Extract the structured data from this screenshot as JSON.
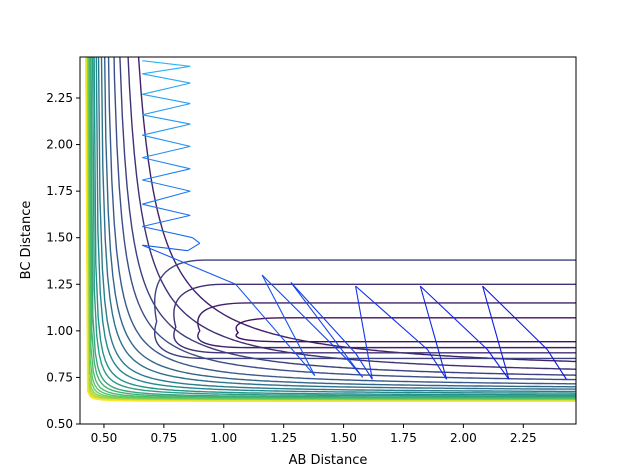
{
  "chart_data": {
    "type": "contour",
    "title": "",
    "xlabel": "AB Distance",
    "ylabel": "BC Distance",
    "xlim": [
      0.4,
      2.47
    ],
    "ylim": [
      0.5,
      2.47
    ],
    "xticks": [
      {
        "v": 0.5,
        "label": "0.50"
      },
      {
        "v": 0.75,
        "label": "0.75"
      },
      {
        "v": 1.0,
        "label": "1.00"
      },
      {
        "v": 1.25,
        "label": "1.25"
      },
      {
        "v": 1.5,
        "label": "1.50"
      },
      {
        "v": 1.75,
        "label": "1.75"
      },
      {
        "v": 2.0,
        "label": "2.00"
      },
      {
        "v": 2.25,
        "label": "2.25"
      }
    ],
    "yticks": [
      {
        "v": 0.5,
        "label": "0.50"
      },
      {
        "v": 0.75,
        "label": "0.75"
      },
      {
        "v": 1.0,
        "label": "1.00"
      },
      {
        "v": 1.25,
        "label": "1.25"
      },
      {
        "v": 1.5,
        "label": "1.50"
      },
      {
        "v": 1.75,
        "label": "1.75"
      },
      {
        "v": 2.0,
        "label": "2.00"
      },
      {
        "v": 2.25,
        "label": "2.25"
      }
    ],
    "grid": false,
    "colormap": "viridis",
    "contour_curves": [
      {
        "frac": 0.0,
        "r": 0.4,
        "tail": 1.0
      },
      {
        "frac": 0.05,
        "r": 0.34,
        "tail": 0.85
      },
      {
        "frac": 0.1,
        "r": 0.29,
        "tail": 0.74
      },
      {
        "frac": 0.15,
        "r": 0.25,
        "tail": 0.66
      },
      {
        "frac": 0.2,
        "r": 0.21,
        "tail": 0.59
      },
      {
        "frac": 0.25,
        "r": 0.18,
        "tail": 0.53
      },
      {
        "frac": 0.3,
        "r": 0.155,
        "tail": 0.48
      },
      {
        "frac": 0.35,
        "r": 0.13,
        "tail": 0.435
      },
      {
        "frac": 0.4,
        "r": 0.11,
        "tail": 0.395
      },
      {
        "frac": 0.45,
        "r": 0.09,
        "tail": 0.36
      },
      {
        "frac": 0.5,
        "r": 0.075,
        "tail": 0.33
      },
      {
        "frac": 0.55,
        "r": 0.06,
        "tail": 0.3
      },
      {
        "frac": 0.6,
        "r": 0.05,
        "tail": 0.275
      },
      {
        "frac": 0.65,
        "r": 0.04,
        "tail": 0.25
      },
      {
        "frac": 0.7,
        "r": 0.032,
        "tail": 0.23
      },
      {
        "frac": 0.75,
        "r": 0.025,
        "tail": 0.21
      },
      {
        "frac": 0.8,
        "r": 0.019,
        "tail": 0.19
      },
      {
        "frac": 0.85,
        "r": 0.014,
        "tail": 0.175
      },
      {
        "frac": 0.9,
        "r": 0.01,
        "tail": 0.16
      },
      {
        "frac": 0.95,
        "r": 0.007,
        "tail": 0.15
      },
      {
        "frac": 1.0,
        "r": 0.004,
        "tail": 0.14
      }
    ],
    "well_loops": [
      {
        "frac": 0.05,
        "x0": 1.06,
        "xend": 2.47,
        "yc": 0.99,
        "h": 0.08
      },
      {
        "frac": 0.1,
        "x0": 0.9,
        "xend": 2.47,
        "yc": 1.0,
        "h": 0.15
      },
      {
        "frac": 0.15,
        "x0": 0.8,
        "xend": 2.47,
        "yc": 1.02,
        "h": 0.23
      },
      {
        "frac": 0.2,
        "x0": 0.72,
        "xend": 2.47,
        "yc": 1.05,
        "h": 0.33
      }
    ],
    "trajectory": {
      "name": "",
      "color_start": "#29b6f6",
      "color_end": "#0a10e8",
      "points": [
        [
          0.66,
          2.45
        ],
        [
          0.86,
          2.42
        ],
        [
          0.66,
          2.38
        ],
        [
          0.86,
          2.33
        ],
        [
          0.66,
          2.27
        ],
        [
          0.86,
          2.22
        ],
        [
          0.66,
          2.16
        ],
        [
          0.86,
          2.11
        ],
        [
          0.66,
          2.05
        ],
        [
          0.86,
          1.99
        ],
        [
          0.66,
          1.93
        ],
        [
          0.86,
          1.87
        ],
        [
          0.66,
          1.81
        ],
        [
          0.86,
          1.75
        ],
        [
          0.66,
          1.68
        ],
        [
          0.86,
          1.62
        ],
        [
          0.66,
          1.56
        ],
        [
          0.87,
          1.5
        ],
        [
          0.9,
          1.47
        ],
        [
          0.85,
          1.43
        ],
        [
          0.66,
          1.46
        ],
        [
          1.05,
          1.25
        ],
        [
          1.38,
          0.76
        ],
        [
          1.16,
          1.3
        ],
        [
          1.52,
          0.84
        ],
        [
          1.58,
          0.75
        ],
        [
          1.28,
          1.26
        ],
        [
          1.55,
          0.88
        ],
        [
          1.62,
          0.74
        ],
        [
          1.55,
          1.24
        ],
        [
          1.85,
          0.9
        ],
        [
          1.93,
          0.74
        ],
        [
          1.82,
          1.24
        ],
        [
          2.1,
          0.9
        ],
        [
          2.19,
          0.74
        ],
        [
          2.08,
          1.24
        ],
        [
          2.35,
          0.9
        ],
        [
          2.43,
          0.74
        ]
      ]
    }
  }
}
